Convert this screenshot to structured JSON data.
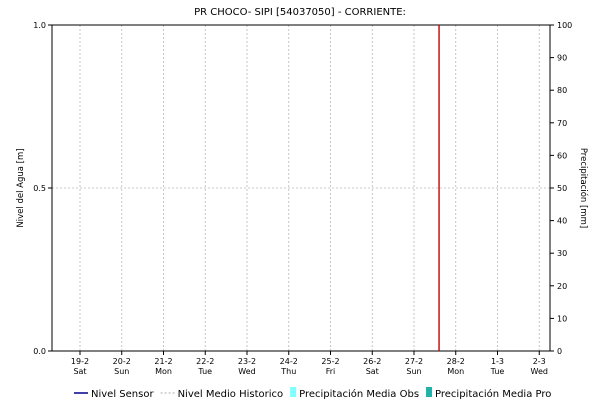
{
  "chart_data": {
    "type": "line",
    "title": "PR CHOCO- SIPI [54037050] - CORRIENTE:",
    "y_left_label": "Nivel del Agua [m]",
    "y_right_label": "Precipitación [mm]",
    "y_left_ticks": [
      "0.0",
      "0.5",
      "1.0"
    ],
    "y_left_range": [
      0,
      1
    ],
    "y_right_ticks": [
      "0",
      "10",
      "20",
      "30",
      "40",
      "50",
      "60",
      "70",
      "80",
      "90",
      "100"
    ],
    "y_right_range": [
      0,
      100
    ],
    "x_ticks": [
      {
        "date": "19-2",
        "day": "Sat"
      },
      {
        "date": "20-2",
        "day": "Sun"
      },
      {
        "date": "21-2",
        "day": "Mon"
      },
      {
        "date": "22-2",
        "day": "Tue"
      },
      {
        "date": "23-2",
        "day": "Wed"
      },
      {
        "date": "24-2",
        "day": "Thu"
      },
      {
        "date": "25-2",
        "day": "Fri"
      },
      {
        "date": "26-2",
        "day": "Sat"
      },
      {
        "date": "27-2",
        "day": "Sun"
      },
      {
        "date": "28-2",
        "day": "Mon"
      },
      {
        "date": "1-3",
        "day": "Tue"
      },
      {
        "date": "2-3",
        "day": "Wed"
      }
    ],
    "current_time_marker_between": [
      "27-2",
      "28-2"
    ],
    "grid": true,
    "legend_position": "bottom",
    "series": [
      {
        "name": "Nivel Sensor",
        "color": "#00008b",
        "style": "line",
        "values": []
      },
      {
        "name": "Nivel Medio Historico",
        "color": "#b0b0b0",
        "style": "dashed",
        "values": []
      },
      {
        "name": "Precipitación Media Obs",
        "color": "#7fffff",
        "style": "bar",
        "values": []
      },
      {
        "name": "Precipitación Media Pro",
        "color": "#20b2aa",
        "style": "bar",
        "values": []
      }
    ],
    "colors": {
      "marker": "#cc0000",
      "grid": "#b8b8b8",
      "axis": "#000000"
    }
  }
}
